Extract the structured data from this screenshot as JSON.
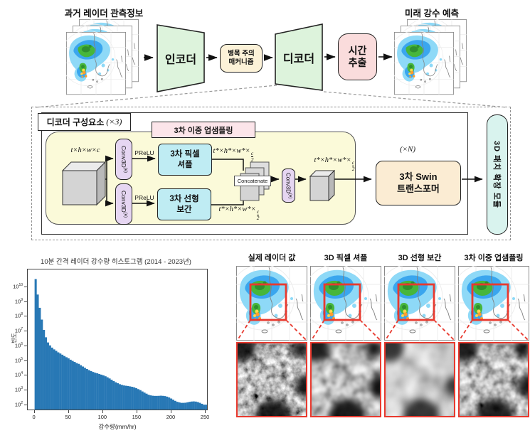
{
  "top": {
    "past_title": "과거 레이더 관측정보",
    "future_title": "미래 강수 예측",
    "encoder_label": "인코더",
    "bottleneck": [
      "병목 주의",
      "매커니즘"
    ],
    "decoder_label": "디코더",
    "time_extract": [
      "시간",
      "추출"
    ]
  },
  "detail": {
    "container_title": "디코더 구성요소",
    "container_mult": "(×3)",
    "upsample_title": "3차 이중 업샘플링",
    "input_dims": "t×h×w×c",
    "conv3d": "Conv3D",
    "conv3d_sup": "(e)",
    "prelu": "PReLU",
    "pixel_shuffle": [
      "3차 픽셀",
      "셔플"
    ],
    "linear_interp": [
      "3차 선형",
      "보간"
    ],
    "star_prefix": "t*×h*×w*×",
    "frac_num": "c",
    "frac_den": "2",
    "concatenate": "Concatenate",
    "swin_mult": "(×N)",
    "swin": [
      "3차 Swin",
      "트랜스포머"
    ],
    "patch_expand": "3D 패치 확장 모듈"
  },
  "chart_data": {
    "type": "bar",
    "subtype": "histogram",
    "title": "10분 간격 레이더 강수량 히스토그램 (2014 - 2023년)",
    "xlabel": "강수량(mm/hr)",
    "ylabel": "빈도",
    "yscale": "log",
    "x_ticks": [
      0,
      50,
      100,
      150,
      200,
      250
    ],
    "y_tick_exponents": [
      2,
      3,
      4,
      5,
      6,
      7,
      8,
      9,
      10
    ],
    "ylim_log10": [
      1.7,
      11.2
    ],
    "xlim": [
      -10,
      252
    ],
    "bar_color": "#2878b5",
    "x_start": 0,
    "x_step": 3,
    "log10_frequency": [
      10.55,
      9.5,
      8.6,
      7.8,
      7.1,
      6.6,
      6.25,
      6.05,
      5.9,
      5.78,
      5.68,
      5.58,
      5.5,
      5.42,
      5.33,
      5.25,
      5.17,
      5.08,
      5.0,
      4.93,
      4.85,
      4.78,
      4.7,
      4.63,
      4.56,
      4.49,
      4.42,
      4.35,
      4.28,
      4.21,
      4.15,
      4.08,
      4.02,
      3.96,
      3.9,
      3.84,
      3.78,
      3.72,
      3.66,
      3.6,
      3.55,
      3.49,
      3.44,
      3.38,
      3.33,
      3.28,
      3.22,
      3.17,
      3.12,
      3.07,
      3.02,
      2.98,
      2.93,
      2.89,
      2.85,
      2.8,
      2.76,
      2.72,
      2.68,
      2.64,
      2.6,
      2.57,
      2.53,
      2.5,
      2.47,
      2.44,
      2.41,
      2.38,
      2.35,
      2.32,
      2.3,
      2.27,
      2.25,
      2.22,
      2.2,
      2.18,
      2.16,
      2.14,
      2.12,
      2.1,
      2.08,
      2.06,
      2.05,
      2.1,
      2.25,
      2.15
    ]
  },
  "panels": {
    "titles": [
      "실제 레이더 값",
      "3D 픽셀 셔플",
      "3D 선형 보간",
      "3차 이중 업샘플링"
    ],
    "frame_color": "#e8392e"
  },
  "colors": {
    "encoder_green": "#ddf3dc",
    "bottleneck_cream": "#fcf2d8",
    "pink": "#fadcdc",
    "header_pink": "#fce5ea",
    "yellow": "#fbfad9",
    "cyan": "#bfecf3",
    "cyan_light": "#d9f3ee",
    "purple": "#e6d6f2",
    "swin_tan": "#fbecd3",
    "red": "#e8392e",
    "bar_blue": "#2878b5"
  }
}
